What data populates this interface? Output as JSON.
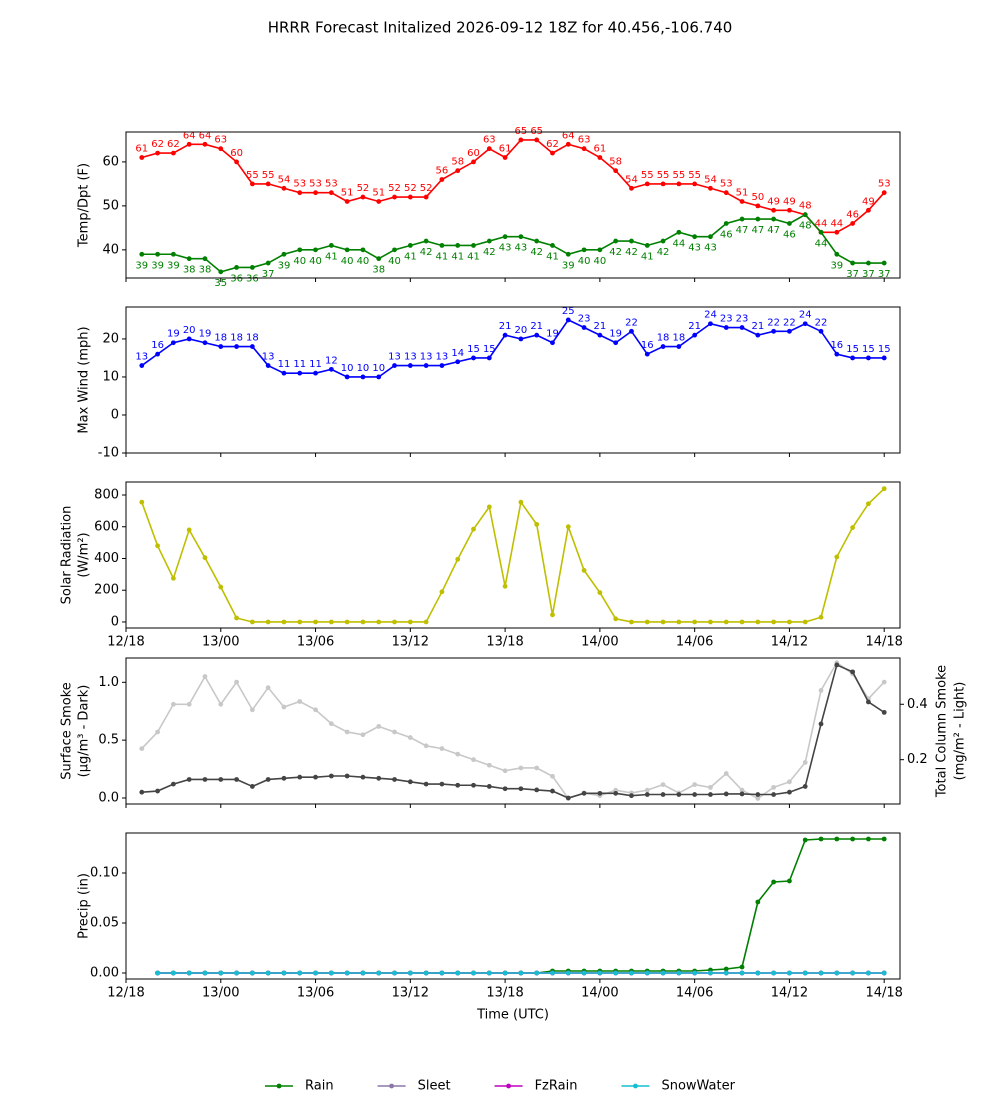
{
  "title": "HRRR Forecast Initalized 2026-09-12 18Z for 40.456,-106.740",
  "chart_data": [
    {
      "type": "line",
      "ylabel": [
        "Temp/Dpt (F)"
      ],
      "x": [
        "12/19",
        "12/20",
        "12/21",
        "12/22",
        "12/23",
        "13/00",
        "13/01",
        "13/02",
        "13/03",
        "13/04",
        "13/05",
        "13/06",
        "13/07",
        "13/08",
        "13/09",
        "13/10",
        "13/11",
        "13/12",
        "13/13",
        "13/14",
        "13/15",
        "13/16",
        "13/17",
        "13/18",
        "13/19",
        "13/20",
        "13/21",
        "13/22",
        "13/23",
        "14/00",
        "14/01",
        "14/02",
        "14/03",
        "14/04",
        "14/05",
        "14/06",
        "14/07",
        "14/08",
        "14/09",
        "14/10",
        "14/11",
        "14/12",
        "14/13",
        "14/14",
        "14/15",
        "14/16",
        "14/17",
        "14/18"
      ],
      "xlim": [
        "12/18",
        "14/19"
      ],
      "xticks": [
        "12/18",
        "13/00",
        "13/06",
        "13/12",
        "13/18",
        "14/00",
        "14/06",
        "14/12",
        "14/18"
      ],
      "show_xtick_labels": false,
      "ylim": [
        33.6,
        66.8
      ],
      "yticks": [
        40,
        50,
        60
      ],
      "series": [
        {
          "name": "Temp",
          "color": "#ff0000",
          "data_labels": true,
          "label_position": "above",
          "values": [
            61,
            62,
            62,
            64,
            64,
            63,
            60,
            55,
            55,
            54,
            53,
            53,
            53,
            51,
            52,
            51,
            52,
            52,
            52,
            56,
            58,
            60,
            63,
            61,
            65,
            65,
            62,
            64,
            63,
            61,
            58,
            54,
            55,
            55,
            55,
            55,
            54,
            53,
            51,
            50,
            49,
            49,
            48,
            44,
            44,
            46,
            49,
            53
          ]
        },
        {
          "name": "Dewpoint",
          "color": "#008000",
          "data_labels": true,
          "label_position": "below",
          "values": [
            39,
            39,
            39,
            38,
            38,
            35,
            36,
            36,
            37,
            39,
            40,
            40,
            41,
            40,
            40,
            38,
            40,
            41,
            42,
            41,
            41,
            41,
            42,
            43,
            43,
            42,
            41,
            39,
            40,
            40,
            42,
            42,
            41,
            42,
            44,
            43,
            43,
            46,
            47,
            47,
            47,
            46,
            48,
            44,
            39,
            37,
            37,
            37
          ]
        }
      ]
    },
    {
      "type": "line",
      "ylabel": [
        "Max Wind (mph)"
      ],
      "x": [
        "12/19",
        "12/20",
        "12/21",
        "12/22",
        "12/23",
        "13/00",
        "13/01",
        "13/02",
        "13/03",
        "13/04",
        "13/05",
        "13/06",
        "13/07",
        "13/08",
        "13/09",
        "13/10",
        "13/11",
        "13/12",
        "13/13",
        "13/14",
        "13/15",
        "13/16",
        "13/17",
        "13/18",
        "13/19",
        "13/20",
        "13/21",
        "13/22",
        "13/23",
        "14/00",
        "14/01",
        "14/02",
        "14/03",
        "14/04",
        "14/05",
        "14/06",
        "14/07",
        "14/08",
        "14/09",
        "14/10",
        "14/11",
        "14/12",
        "14/13",
        "14/14",
        "14/15",
        "14/16",
        "14/17",
        "14/18"
      ],
      "xlim": [
        "12/18",
        "14/19"
      ],
      "xticks": [
        "12/18",
        "13/00",
        "13/06",
        "13/12",
        "13/18",
        "14/00",
        "14/06",
        "14/12",
        "14/18"
      ],
      "show_xtick_labels": false,
      "ylim": [
        -10,
        28.4
      ],
      "yticks": [
        -10,
        0,
        10,
        20
      ],
      "series": [
        {
          "name": "Max Wind",
          "color": "#0000ff",
          "data_labels": true,
          "label_position": "above",
          "values": [
            13,
            16,
            19,
            20,
            19,
            18,
            18,
            18,
            13,
            11,
            11,
            11,
            12,
            10,
            10,
            10,
            13,
            13,
            13,
            13,
            14,
            15,
            15,
            21,
            20,
            21,
            19,
            25,
            23,
            21,
            19,
            22,
            16,
            18,
            18,
            21,
            24,
            23,
            23,
            21,
            22,
            22,
            24,
            22,
            16,
            15,
            15,
            15
          ]
        }
      ]
    },
    {
      "type": "line",
      "ylabel": [
        "Solar Radiation",
        "(W/m²)"
      ],
      "x": [
        "12/19",
        "12/20",
        "12/21",
        "12/22",
        "12/23",
        "13/00",
        "13/01",
        "13/02",
        "13/03",
        "13/04",
        "13/05",
        "13/06",
        "13/07",
        "13/08",
        "13/09",
        "13/10",
        "13/11",
        "13/12",
        "13/13",
        "13/14",
        "13/15",
        "13/16",
        "13/17",
        "13/18",
        "13/19",
        "13/20",
        "13/21",
        "13/22",
        "13/23",
        "14/00",
        "14/01",
        "14/02",
        "14/03",
        "14/04",
        "14/05",
        "14/06",
        "14/07",
        "14/08",
        "14/09",
        "14/10",
        "14/11",
        "14/12",
        "14/13",
        "14/14",
        "14/15",
        "14/16",
        "14/17",
        "14/18"
      ],
      "xlim": [
        "12/18",
        "14/19"
      ],
      "xticks": [
        "12/18",
        "13/00",
        "13/06",
        "13/12",
        "13/18",
        "14/00",
        "14/06",
        "14/12",
        "14/18"
      ],
      "show_xtick_labels": true,
      "ylim": [
        -38,
        882
      ],
      "yticks": [
        0,
        200,
        400,
        600,
        800
      ],
      "series": [
        {
          "name": "Solar Radiation",
          "color": "#bfbf00",
          "values": [
            755,
            480,
            275,
            580,
            405,
            220,
            25,
            0,
            0,
            0,
            0,
            0,
            0,
            0,
            0,
            0,
            0,
            0,
            0,
            190,
            395,
            585,
            725,
            225,
            755,
            615,
            45,
            600,
            325,
            185,
            20,
            0,
            0,
            0,
            0,
            0,
            0,
            0,
            0,
            0,
            0,
            0,
            0,
            30,
            410,
            595,
            745,
            840
          ]
        }
      ]
    },
    {
      "type": "line",
      "ylabel": [
        "Surface Smoke",
        "(μg/m³ - Dark)"
      ],
      "y2label": [
        "Total Column Smoke",
        "(mg/m² - Light)"
      ],
      "x": [
        "12/19",
        "12/20",
        "12/21",
        "12/22",
        "12/23",
        "13/00",
        "13/01",
        "13/02",
        "13/03",
        "13/04",
        "13/05",
        "13/06",
        "13/07",
        "13/08",
        "13/09",
        "13/10",
        "13/11",
        "13/12",
        "13/13",
        "13/14",
        "13/15",
        "13/16",
        "13/17",
        "13/18",
        "13/19",
        "13/20",
        "13/21",
        "13/22",
        "13/23",
        "14/00",
        "14/01",
        "14/02",
        "14/03",
        "14/04",
        "14/05",
        "14/06",
        "14/07",
        "14/08",
        "14/09",
        "14/10",
        "14/11",
        "14/12",
        "14/13",
        "14/14",
        "14/15",
        "14/16",
        "14/17",
        "14/18"
      ],
      "xlim": [
        "12/18",
        "14/19"
      ],
      "xticks": [
        "12/18",
        "13/00",
        "13/06",
        "13/12",
        "13/18",
        "14/00",
        "14/06",
        "14/12",
        "14/18"
      ],
      "show_xtick_labels": false,
      "ylim": [
        -0.052,
        1.21
      ],
      "yticks": [
        {
          "value": 0,
          "label": "0.0"
        },
        0.5,
        {
          "value": 1,
          "label": "1.0"
        }
      ],
      "y2lim": [
        0.04,
        0.567
      ],
      "y2ticks": [
        0.2,
        0.4
      ],
      "series": [
        {
          "name": "Total Column Smoke",
          "color": "#c8c8c8",
          "axis": "y2",
          "values": [
            0.24,
            0.3,
            0.4,
            0.4,
            0.5,
            0.4,
            0.48,
            0.38,
            0.46,
            0.39,
            0.41,
            0.38,
            0.33,
            0.3,
            0.29,
            0.32,
            0.3,
            0.28,
            0.25,
            0.24,
            0.22,
            0.2,
            0.18,
            0.16,
            0.17,
            0.17,
            0.14,
            0.06,
            0.08,
            0.07,
            0.09,
            0.08,
            0.09,
            0.11,
            0.08,
            0.11,
            0.1,
            0.15,
            0.09,
            0.06,
            0.1,
            0.12,
            0.19,
            0.45,
            0.55,
            0.51,
            0.42,
            0.48
          ]
        },
        {
          "name": "Surface Smoke",
          "color": "#444444",
          "values": [
            0.05,
            0.06,
            0.12,
            0.16,
            0.16,
            0.16,
            0.16,
            0.1,
            0.16,
            0.17,
            0.18,
            0.18,
            0.19,
            0.19,
            0.18,
            0.17,
            0.16,
            0.14,
            0.12,
            0.12,
            0.11,
            0.11,
            0.1,
            0.08,
            0.08,
            0.07,
            0.06,
            0.0,
            0.04,
            0.04,
            0.04,
            0.02,
            0.03,
            0.03,
            0.03,
            0.03,
            0.03,
            0.035,
            0.035,
            0.03,
            0.03,
            0.05,
            0.1,
            0.64,
            1.15,
            1.09,
            0.83,
            0.74
          ]
        }
      ]
    },
    {
      "type": "line",
      "ylabel": [
        "Precip (in)"
      ],
      "xlabel": "Time (UTC)",
      "legend": "lower center",
      "x": [
        "12/19",
        "12/20",
        "12/21",
        "12/22",
        "12/23",
        "13/00",
        "13/01",
        "13/02",
        "13/03",
        "13/04",
        "13/05",
        "13/06",
        "13/07",
        "13/08",
        "13/09",
        "13/10",
        "13/11",
        "13/12",
        "13/13",
        "13/14",
        "13/15",
        "13/16",
        "13/17",
        "13/18",
        "13/19",
        "13/20",
        "13/21",
        "13/22",
        "13/23",
        "14/00",
        "14/01",
        "14/02",
        "14/03",
        "14/04",
        "14/05",
        "14/06",
        "14/07",
        "14/08",
        "14/09",
        "14/10",
        "14/11",
        "14/12",
        "14/13",
        "14/14",
        "14/15",
        "14/16",
        "14/17",
        "14/18"
      ],
      "xlim": [
        "12/18",
        "14/19"
      ],
      "xticks": [
        "12/18",
        "13/00",
        "13/06",
        "13/12",
        "13/18",
        "14/00",
        "14/06",
        "14/12",
        "14/18"
      ],
      "show_xtick_labels": true,
      "ylim": [
        -0.006,
        0.14
      ],
      "yticks": [
        {
          "value": 0,
          "label": "0.00"
        },
        0.05,
        {
          "value": 0.1,
          "label": "0.10"
        }
      ],
      "series": [
        {
          "name": "Rain",
          "color": "#008000",
          "values": [
            null,
            0,
            0,
            0,
            0,
            0,
            0,
            0,
            0,
            0,
            0,
            0,
            0,
            0,
            0,
            0,
            0,
            0,
            0,
            0,
            0,
            0,
            0,
            0,
            0,
            0,
            0.002,
            0.002,
            0.002,
            0.002,
            0.002,
            0.002,
            0.002,
            0.002,
            0.002,
            0.002,
            0.003,
            0.004,
            0.006,
            0.071,
            0.091,
            0.092,
            0.133,
            0.134,
            0.134,
            0.134,
            0.134,
            0.134
          ]
        },
        {
          "name": "Sleet",
          "color": "#8c78a8",
          "values": [
            null,
            0,
            0,
            0,
            0,
            0,
            0,
            0,
            0,
            0,
            0,
            0,
            0,
            0,
            0,
            0,
            0,
            0,
            0,
            0,
            0,
            0,
            0,
            0,
            0,
            0,
            0,
            0,
            0,
            0,
            0,
            0,
            0,
            0,
            0,
            0,
            0,
            0,
            0,
            0,
            0,
            0,
            0,
            0,
            0,
            0,
            0,
            0
          ]
        },
        {
          "name": "FzRain",
          "color": "#bf00bf",
          "values": [
            null,
            0,
            0,
            0,
            0,
            0,
            0,
            0,
            0,
            0,
            0,
            0,
            0,
            0,
            0,
            0,
            0,
            0,
            0,
            0,
            0,
            0,
            0,
            0,
            0,
            0,
            0,
            0,
            0,
            0,
            0,
            0,
            0,
            0,
            0,
            0,
            0,
            0,
            0,
            0,
            0,
            0,
            0,
            0,
            0,
            0,
            0,
            0
          ]
        },
        {
          "name": "SnowWater",
          "color": "#17becf",
          "values": [
            null,
            0,
            0,
            0,
            0,
            0,
            0,
            0,
            0,
            0,
            0,
            0,
            0,
            0,
            0,
            0,
            0,
            0,
            0,
            0,
            0,
            0,
            0,
            0,
            0,
            0,
            0,
            0,
            0,
            0,
            0,
            0,
            0,
            0,
            0,
            0,
            0,
            0,
            0,
            0,
            0,
            0,
            0,
            0,
            0,
            0,
            0,
            0
          ]
        }
      ]
    }
  ]
}
